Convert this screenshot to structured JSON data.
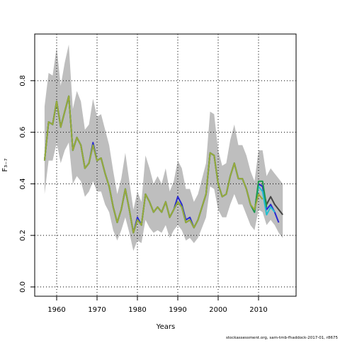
{
  "chart_data": {
    "type": "line",
    "xlabel": "Years",
    "ylabel": "F₃₋₇",
    "footer": "stockassessment.org, sam-tmb-fhaddock-2017-01, r8675",
    "x": [
      1957,
      1958,
      1959,
      1960,
      1961,
      1962,
      1963,
      1964,
      1965,
      1966,
      1967,
      1968,
      1969,
      1970,
      1971,
      1972,
      1973,
      1974,
      1975,
      1976,
      1977,
      1978,
      1979,
      1980,
      1981,
      1982,
      1983,
      1984,
      1985,
      1986,
      1987,
      1988,
      1989,
      1990,
      1991,
      1992,
      1993,
      1994,
      1995,
      1996,
      1997,
      1998,
      1999,
      2000,
      2001,
      2002,
      2003,
      2004,
      2005,
      2006,
      2007,
      2008,
      2009,
      2010,
      2011,
      2012,
      2013,
      2014,
      2015,
      2016
    ],
    "band": {
      "color": "#bebebe",
      "upper": [
        0.7,
        0.83,
        0.82,
        0.93,
        0.78,
        0.87,
        0.94,
        0.69,
        0.76,
        0.72,
        0.61,
        0.63,
        0.73,
        0.66,
        0.67,
        0.61,
        0.55,
        0.45,
        0.36,
        0.42,
        0.52,
        0.41,
        0.3,
        0.37,
        0.33,
        0.51,
        0.46,
        0.4,
        0.43,
        0.4,
        0.46,
        0.37,
        0.41,
        0.49,
        0.46,
        0.38,
        0.38,
        0.33,
        0.36,
        0.42,
        0.48,
        0.68,
        0.67,
        0.53,
        0.47,
        0.48,
        0.57,
        0.63,
        0.55,
        0.55,
        0.51,
        0.45,
        0.41,
        0.53,
        0.53,
        0.43,
        0.46,
        0.44,
        0.42,
        0.4
      ],
      "lower": [
        0.36,
        0.49,
        0.49,
        0.56,
        0.48,
        0.53,
        0.56,
        0.4,
        0.43,
        0.41,
        0.35,
        0.37,
        0.41,
        0.37,
        0.37,
        0.32,
        0.29,
        0.22,
        0.18,
        0.22,
        0.27,
        0.21,
        0.14,
        0.18,
        0.17,
        0.26,
        0.23,
        0.21,
        0.22,
        0.21,
        0.24,
        0.19,
        0.22,
        0.24,
        0.22,
        0.18,
        0.19,
        0.17,
        0.19,
        0.23,
        0.27,
        0.39,
        0.38,
        0.3,
        0.27,
        0.27,
        0.32,
        0.36,
        0.32,
        0.32,
        0.28,
        0.24,
        0.22,
        0.3,
        0.29,
        0.24,
        0.26,
        0.24,
        0.21,
        0.19
      ]
    },
    "series": [
      {
        "color": "#444444",
        "values": [
          0.49,
          0.64,
          0.63,
          0.72,
          0.62,
          0.68,
          0.74,
          0.53,
          0.58,
          0.55,
          0.46,
          0.48,
          0.55,
          0.49,
          0.5,
          0.44,
          0.39,
          0.31,
          0.25,
          0.3,
          0.38,
          0.3,
          0.21,
          0.26,
          0.24,
          0.36,
          0.33,
          0.29,
          0.31,
          0.29,
          0.33,
          0.27,
          0.3,
          0.33,
          0.31,
          0.25,
          0.26,
          0.23,
          0.26,
          0.31,
          0.36,
          0.52,
          0.51,
          0.4,
          0.35,
          0.36,
          0.43,
          0.48,
          0.42,
          0.42,
          0.38,
          0.32,
          0.29,
          0.4,
          0.39,
          0.32,
          0.35,
          0.32,
          0.3,
          0.28
        ]
      },
      {
        "color": "#2a2ad0",
        "values": [
          0.49,
          0.64,
          0.63,
          0.72,
          0.62,
          0.68,
          0.74,
          0.53,
          0.58,
          0.55,
          0.46,
          0.48,
          0.56,
          0.49,
          0.5,
          0.44,
          0.39,
          0.31,
          0.25,
          0.3,
          0.38,
          0.3,
          0.21,
          0.27,
          0.24,
          0.36,
          0.33,
          0.29,
          0.31,
          0.29,
          0.33,
          0.27,
          0.3,
          0.35,
          0.32,
          0.26,
          0.27,
          0.23,
          0.26,
          0.31,
          0.36,
          0.52,
          0.51,
          0.4,
          0.35,
          0.36,
          0.43,
          0.48,
          0.42,
          0.42,
          0.38,
          0.32,
          0.29,
          0.4,
          0.39,
          0.3,
          0.32,
          0.29,
          0.25,
          null
        ]
      },
      {
        "color": "#22c0d0",
        "values": [
          0.49,
          0.64,
          0.63,
          0.72,
          0.62,
          0.68,
          0.74,
          0.53,
          0.58,
          0.55,
          0.46,
          0.48,
          0.55,
          0.49,
          0.5,
          0.44,
          0.39,
          0.31,
          0.25,
          0.3,
          0.38,
          0.3,
          0.21,
          0.26,
          0.24,
          0.36,
          0.33,
          0.29,
          0.31,
          0.29,
          0.33,
          0.27,
          0.3,
          0.33,
          0.31,
          0.25,
          0.26,
          0.23,
          0.26,
          0.31,
          0.36,
          0.52,
          0.51,
          0.4,
          0.35,
          0.36,
          0.43,
          0.48,
          0.42,
          0.42,
          0.38,
          0.32,
          0.29,
          0.39,
          0.37,
          0.28,
          0.31,
          0.29,
          null,
          null
        ]
      },
      {
        "color": "#1f9a4a",
        "values": [
          0.49,
          0.64,
          0.63,
          0.72,
          0.62,
          0.68,
          0.74,
          0.53,
          0.58,
          0.55,
          0.46,
          0.48,
          0.55,
          0.49,
          0.5,
          0.44,
          0.39,
          0.31,
          0.25,
          0.3,
          0.38,
          0.3,
          0.21,
          0.26,
          0.24,
          0.36,
          0.33,
          0.29,
          0.31,
          0.29,
          0.33,
          0.27,
          0.3,
          0.33,
          0.31,
          0.25,
          0.26,
          0.23,
          0.26,
          0.31,
          0.36,
          0.52,
          0.51,
          0.4,
          0.35,
          0.36,
          0.43,
          0.48,
          0.42,
          0.42,
          0.38,
          0.32,
          0.29,
          0.41,
          0.41,
          0.31,
          null,
          null,
          null,
          null
        ]
      },
      {
        "color": "#9aa83a",
        "values": [
          0.49,
          0.64,
          0.63,
          0.72,
          0.62,
          0.68,
          0.74,
          0.53,
          0.58,
          0.55,
          0.46,
          0.48,
          0.55,
          0.49,
          0.5,
          0.44,
          0.39,
          0.31,
          0.25,
          0.3,
          0.38,
          0.3,
          0.21,
          0.26,
          0.24,
          0.36,
          0.33,
          0.29,
          0.31,
          0.29,
          0.33,
          0.27,
          0.3,
          0.33,
          0.31,
          0.25,
          0.26,
          0.23,
          0.26,
          0.31,
          0.36,
          0.52,
          0.51,
          0.4,
          0.35,
          0.36,
          0.43,
          0.48,
          0.42,
          0.42,
          0.38,
          0.32,
          0.3,
          0.36,
          0.34,
          null,
          null,
          null,
          null,
          null
        ]
      }
    ],
    "xlim": [
      1954.56,
      2019.3
    ],
    "ylim": [
      -0.036,
      0.981
    ],
    "xticks": [
      1960,
      1970,
      1980,
      1990,
      2000,
      2010
    ],
    "yticks": [
      {
        "value": 0,
        "label": "0.0"
      },
      0.2,
      0.4,
      0.6,
      0.8
    ],
    "grid": true
  }
}
